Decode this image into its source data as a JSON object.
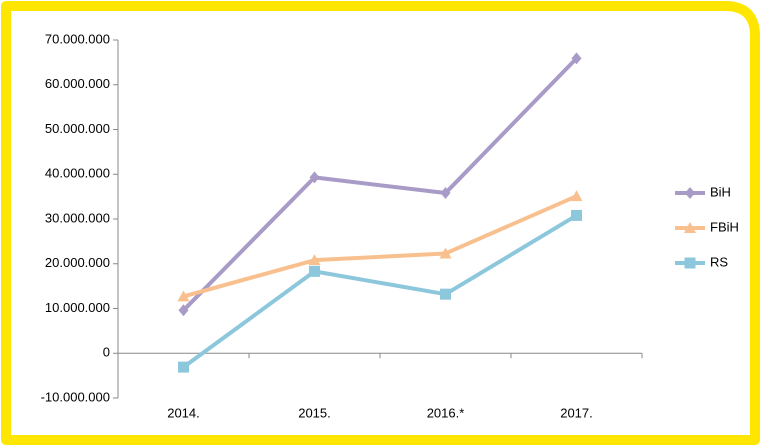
{
  "chart_data": {
    "type": "line",
    "categories": [
      "2014.",
      "2015.",
      "2016.*",
      "2017."
    ],
    "series": [
      {
        "name": "BiH",
        "color": "#a99bc7",
        "marker": "diamond",
        "values": [
          9600000,
          39300000,
          35800000,
          65900000
        ]
      },
      {
        "name": "FBiH",
        "color": "#f9c08f",
        "marker": "triangle",
        "values": [
          12700000,
          20800000,
          22300000,
          35100000
        ]
      },
      {
        "name": "RS",
        "color": "#8dc7dc",
        "marker": "square",
        "values": [
          -3100000,
          18300000,
          13200000,
          30800000
        ]
      }
    ],
    "ylim": [
      -10000000,
      70000000
    ],
    "yticks": [
      {
        "value": -10000000,
        "label": "-10.000.000"
      },
      {
        "value": 0,
        "label": "0"
      },
      {
        "value": 10000000,
        "label": "10.000.000"
      },
      {
        "value": 20000000,
        "label": "20.000.000"
      },
      {
        "value": 30000000,
        "label": "30.000.000"
      },
      {
        "value": 40000000,
        "label": "40.000.000"
      },
      {
        "value": 50000000,
        "label": "50.000.000"
      },
      {
        "value": 60000000,
        "label": "60.000.000"
      },
      {
        "value": 70000000,
        "label": "70.000.000"
      }
    ],
    "legend": "right"
  }
}
